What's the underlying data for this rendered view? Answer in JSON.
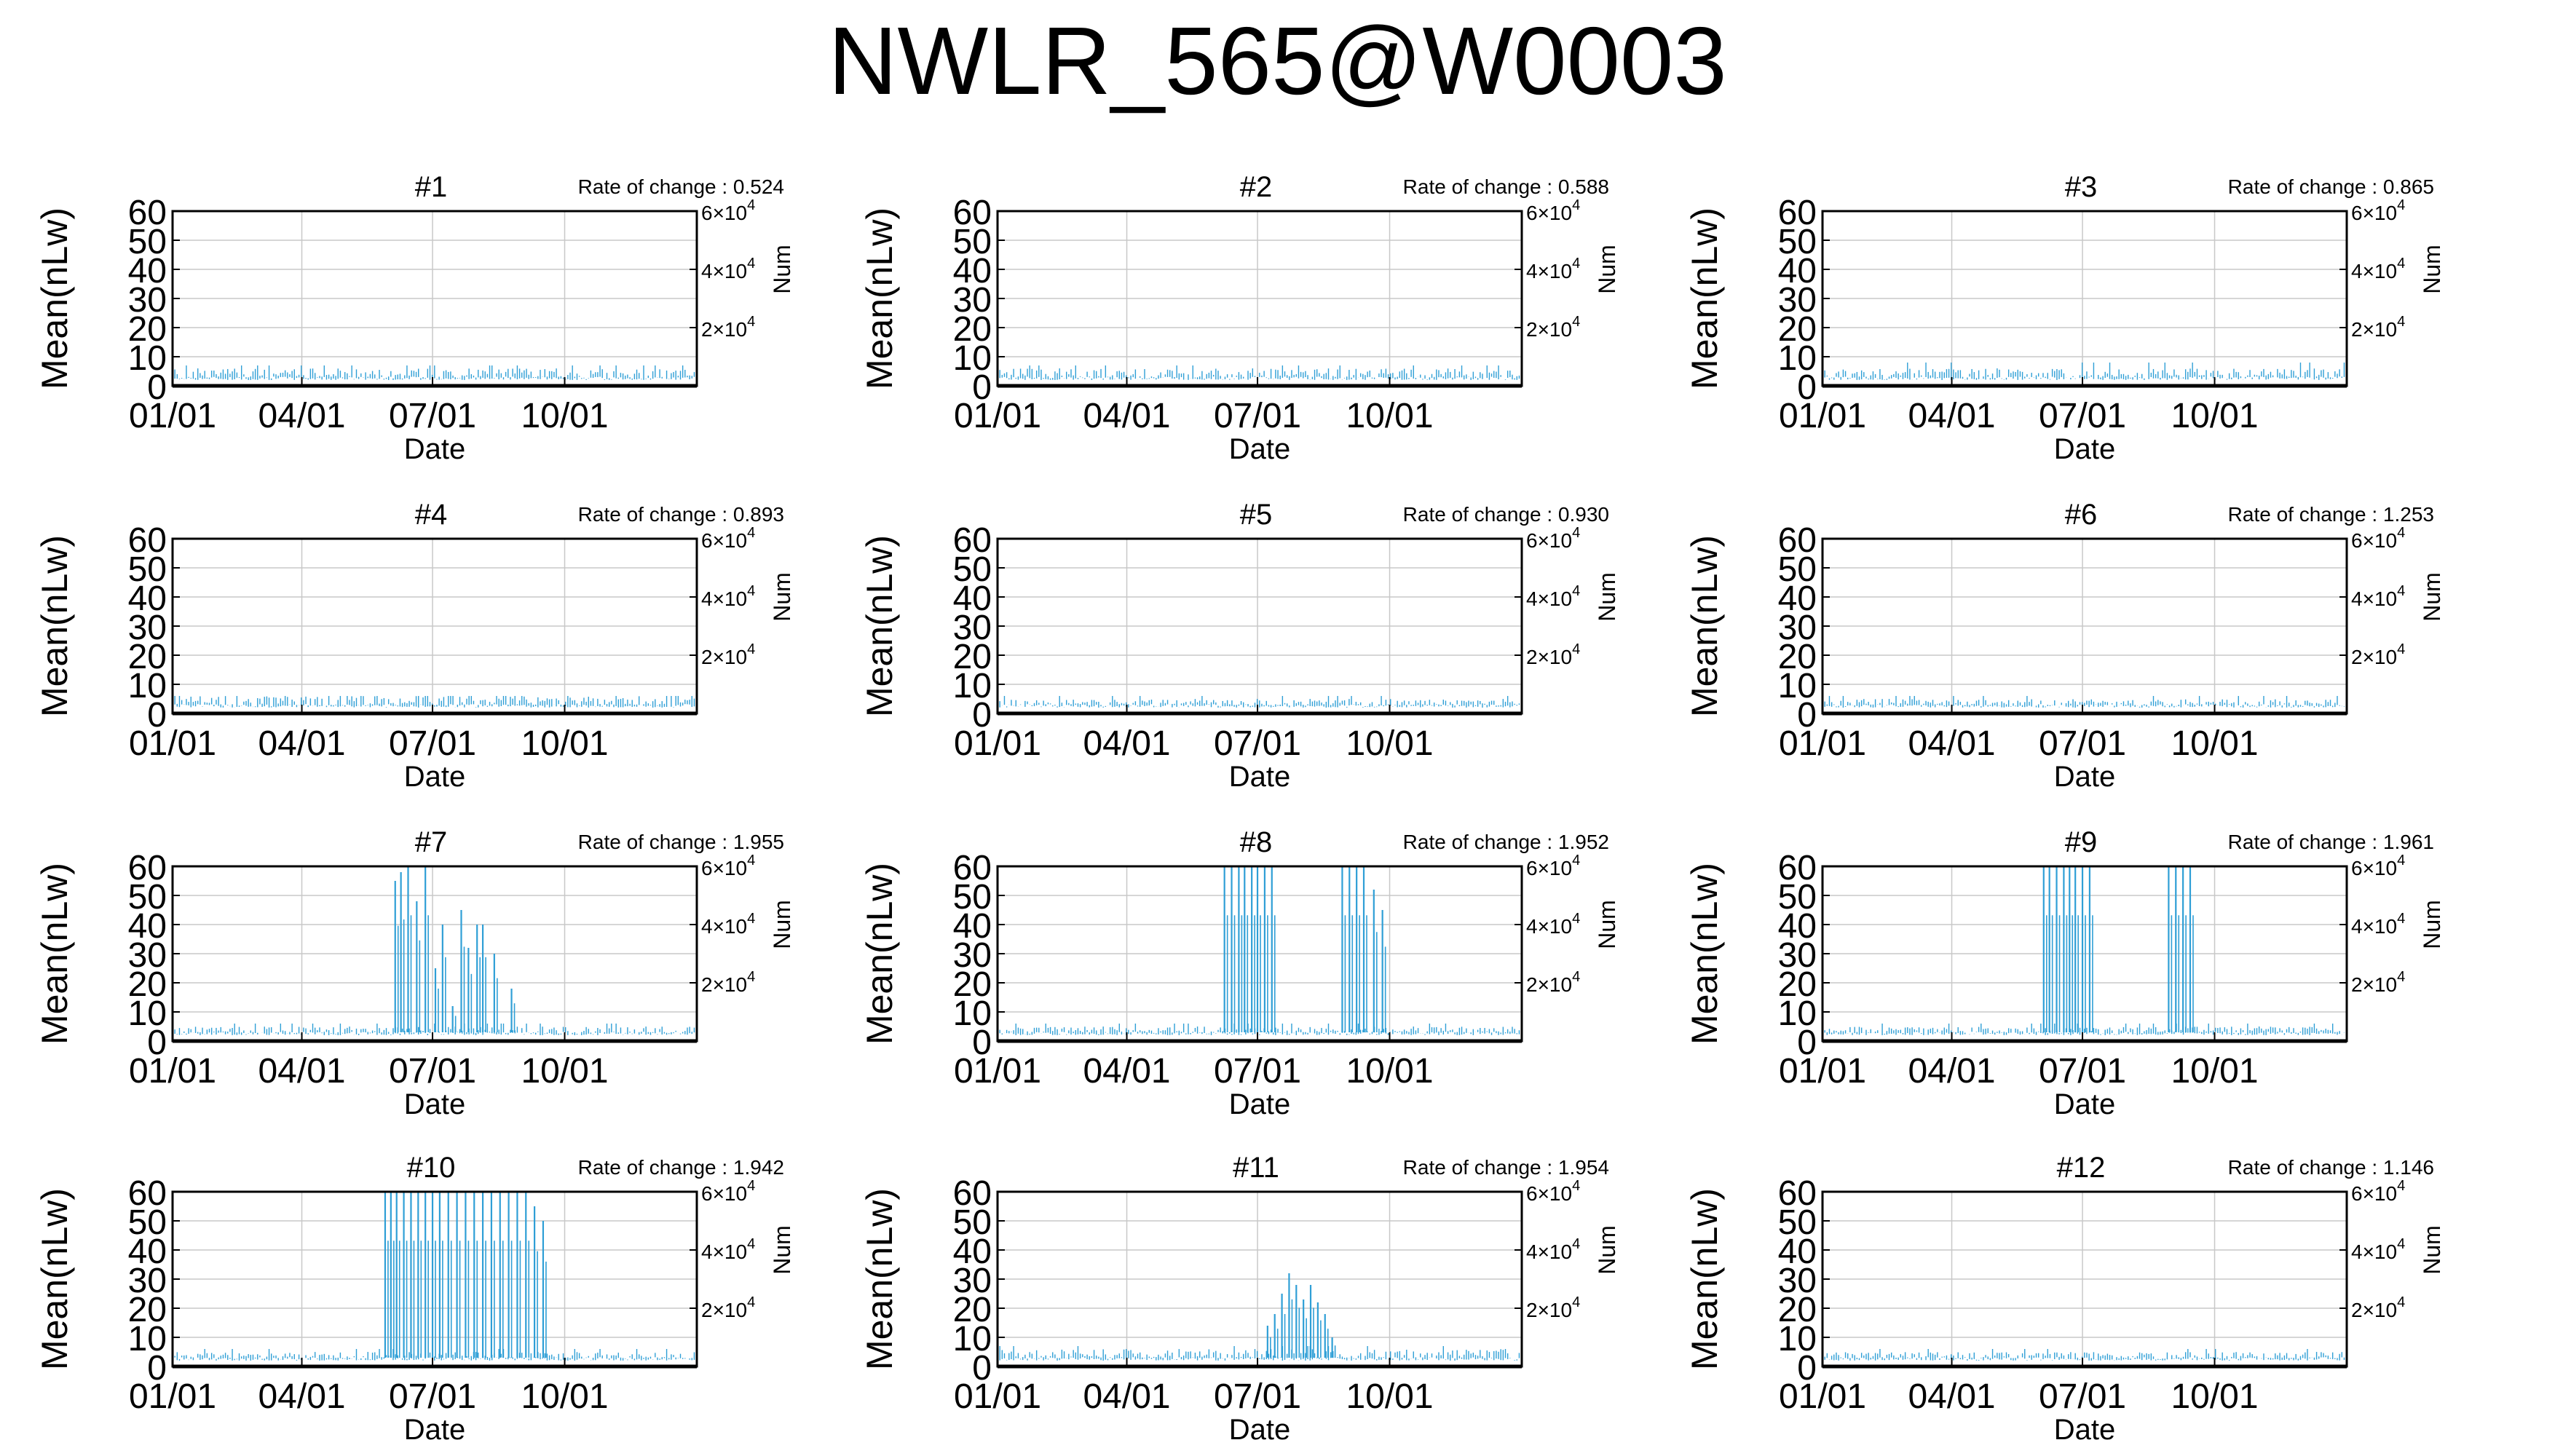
{
  "figure": {
    "title": "NWLR_565@W0003",
    "y_label": "Mean(nLw)",
    "x_label": "Date",
    "y2_label": "Num",
    "y_ticks": [
      "0",
      "10",
      "20",
      "30",
      "40",
      "50",
      "60"
    ],
    "x_ticks": [
      "01/01",
      "04/01",
      "07/01",
      "10/01"
    ],
    "y2_ticks": [
      {
        "base": "2×10",
        "exp": "4"
      },
      {
        "base": "4×10",
        "exp": "4"
      },
      {
        "base": "6×10",
        "exp": "4"
      }
    ],
    "rate_prefix": "Rate of change : "
  },
  "colors": {
    "series": "#2f9fd6",
    "grid": "#c8c8c8",
    "axis": "#000000",
    "background": "#ffffff"
  },
  "chart_data": [
    {
      "type": "line",
      "title": "#1",
      "rate_of_change": "0.524",
      "xlim": [
        "01/01",
        "12/31"
      ],
      "ylim": [
        0,
        60
      ],
      "y2lim": [
        0,
        60000
      ],
      "grid": true,
      "baseline": [
        2,
        6
      ],
      "peak": 7,
      "spikes": []
    },
    {
      "type": "line",
      "title": "#2",
      "rate_of_change": "0.588",
      "xlim": [
        "01/01",
        "12/31"
      ],
      "ylim": [
        0,
        60
      ],
      "y2lim": [
        0,
        60000
      ],
      "grid": true,
      "baseline": [
        2,
        6
      ],
      "peak": 7,
      "spikes": []
    },
    {
      "type": "line",
      "title": "#3",
      "rate_of_change": "0.865",
      "xlim": [
        "01/01",
        "12/31"
      ],
      "ylim": [
        0,
        60
      ],
      "y2lim": [
        0,
        60000
      ],
      "grid": true,
      "baseline": [
        2,
        6
      ],
      "peak": 8,
      "spikes": []
    },
    {
      "type": "line",
      "title": "#4",
      "rate_of_change": "0.893",
      "xlim": [
        "01/01",
        "12/31"
      ],
      "ylim": [
        0,
        60
      ],
      "y2lim": [
        0,
        60000
      ],
      "grid": true,
      "baseline": [
        2,
        6
      ],
      "peak": 6,
      "spikes": []
    },
    {
      "type": "line",
      "title": "#5",
      "rate_of_change": "0.930",
      "xlim": [
        "01/01",
        "12/31"
      ],
      "ylim": [
        0,
        60
      ],
      "y2lim": [
        0,
        60000
      ],
      "grid": true,
      "baseline": [
        2,
        5
      ],
      "peak": 6,
      "spikes": []
    },
    {
      "type": "line",
      "title": "#6",
      "rate_of_change": "1.253",
      "xlim": [
        "01/01",
        "12/31"
      ],
      "ylim": [
        0,
        60
      ],
      "y2lim": [
        0,
        60000
      ],
      "grid": true,
      "baseline": [
        2,
        5
      ],
      "peak": 6,
      "spikes": []
    },
    {
      "type": "line",
      "title": "#7",
      "rate_of_change": "1.955",
      "xlim": [
        "01/01",
        "12/31"
      ],
      "ylim": [
        0,
        60
      ],
      "y2lim": [
        0,
        60000
      ],
      "grid": true,
      "baseline": [
        2,
        5
      ],
      "peak": 6,
      "spikes": [
        [
          155,
          55
        ],
        [
          159,
          58
        ],
        [
          164,
          60
        ],
        [
          170,
          48
        ],
        [
          176,
          60
        ],
        [
          183,
          25
        ],
        [
          188,
          40
        ],
        [
          195,
          12
        ],
        [
          201,
          45
        ],
        [
          206,
          32
        ],
        [
          212,
          40
        ],
        [
          216,
          40
        ],
        [
          224,
          30
        ],
        [
          236,
          18
        ]
      ]
    },
    {
      "type": "line",
      "title": "#8",
      "rate_of_change": "1.952",
      "xlim": [
        "01/01",
        "12/31"
      ],
      "ylim": [
        0,
        60
      ],
      "y2lim": [
        0,
        60000
      ],
      "grid": true,
      "baseline": [
        2,
        5
      ],
      "peak": 6,
      "spikes": [
        [
          158,
          60
        ],
        [
          163,
          60
        ],
        [
          168,
          60
        ],
        [
          172,
          60
        ],
        [
          177,
          60
        ],
        [
          181,
          60
        ],
        [
          186,
          60
        ],
        [
          191,
          60
        ],
        [
          240,
          60
        ],
        [
          245,
          60
        ],
        [
          250,
          60
        ],
        [
          255,
          60
        ],
        [
          262,
          52
        ],
        [
          268,
          45
        ]
      ]
    },
    {
      "type": "line",
      "title": "#9",
      "rate_of_change": "1.961",
      "xlim": [
        "01/01",
        "12/31"
      ],
      "ylim": [
        0,
        60
      ],
      "y2lim": [
        0,
        60000
      ],
      "grid": true,
      "baseline": [
        2,
        5
      ],
      "peak": 6,
      "spikes": [
        [
          154,
          60
        ],
        [
          158,
          60
        ],
        [
          163,
          60
        ],
        [
          168,
          60
        ],
        [
          172,
          60
        ],
        [
          176,
          60
        ],
        [
          181,
          60
        ],
        [
          186,
          60
        ],
        [
          241,
          60
        ],
        [
          246,
          60
        ],
        [
          251,
          60
        ],
        [
          256,
          60
        ]
      ]
    },
    {
      "type": "line",
      "title": "#10",
      "rate_of_change": "1.942",
      "xlim": [
        "01/01",
        "12/31"
      ],
      "ylim": [
        0,
        60
      ],
      "y2lim": [
        0,
        60000
      ],
      "grid": true,
      "baseline": [
        2,
        5
      ],
      "peak": 6,
      "spikes": [
        [
          148,
          60
        ],
        [
          152,
          60
        ],
        [
          156,
          60
        ],
        [
          161,
          60
        ],
        [
          166,
          60
        ],
        [
          171,
          60
        ],
        [
          176,
          60
        ],
        [
          181,
          60
        ],
        [
          186,
          60
        ],
        [
          192,
          60
        ],
        [
          198,
          60
        ],
        [
          204,
          60
        ],
        [
          210,
          60
        ],
        [
          216,
          60
        ],
        [
          222,
          60
        ],
        [
          228,
          60
        ],
        [
          234,
          60
        ],
        [
          240,
          60
        ],
        [
          246,
          60
        ],
        [
          252,
          55
        ],
        [
          258,
          50
        ]
      ]
    },
    {
      "type": "line",
      "title": "#11",
      "rate_of_change": "1.954",
      "xlim": [
        "01/01",
        "12/31"
      ],
      "ylim": [
        0,
        60
      ],
      "y2lim": [
        0,
        60000
      ],
      "grid": true,
      "baseline": [
        2,
        6
      ],
      "peak": 7,
      "spikes": [
        [
          188,
          14
        ],
        [
          193,
          18
        ],
        [
          198,
          25
        ],
        [
          203,
          32
        ],
        [
          208,
          28
        ],
        [
          213,
          23
        ],
        [
          218,
          28
        ],
        [
          223,
          22
        ],
        [
          228,
          18
        ],
        [
          233,
          10
        ]
      ]
    },
    {
      "type": "line",
      "title": "#12",
      "rate_of_change": "1.146",
      "xlim": [
        "01/01",
        "12/31"
      ],
      "ylim": [
        0,
        60
      ],
      "y2lim": [
        0,
        60000
      ],
      "grid": true,
      "baseline": [
        2,
        5
      ],
      "peak": 6,
      "spikes": []
    }
  ]
}
